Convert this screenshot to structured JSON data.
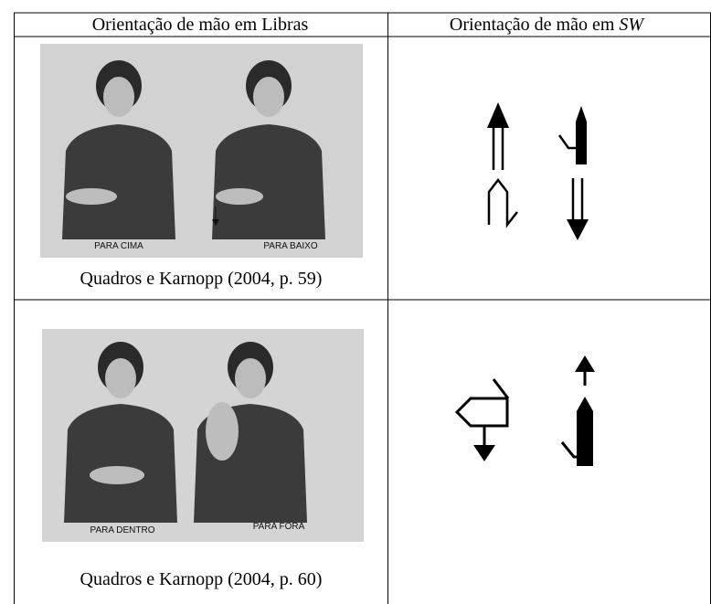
{
  "table": {
    "header": {
      "left": "Orientação de mão em Libras",
      "right_prefix": "Orientação de mão em ",
      "right_emph": "SW"
    },
    "rows": [
      {
        "photo_labels": [
          "PARA CIMA",
          "PARA BAIXO"
        ],
        "citation": "Quadros e Karnopp (2004, p. 59)"
      },
      {
        "photo_labels": [
          "PARA DENTRO",
          "PARA FORA"
        ],
        "citation": "Quadros e Karnopp (2004, p. 60)"
      }
    ]
  }
}
